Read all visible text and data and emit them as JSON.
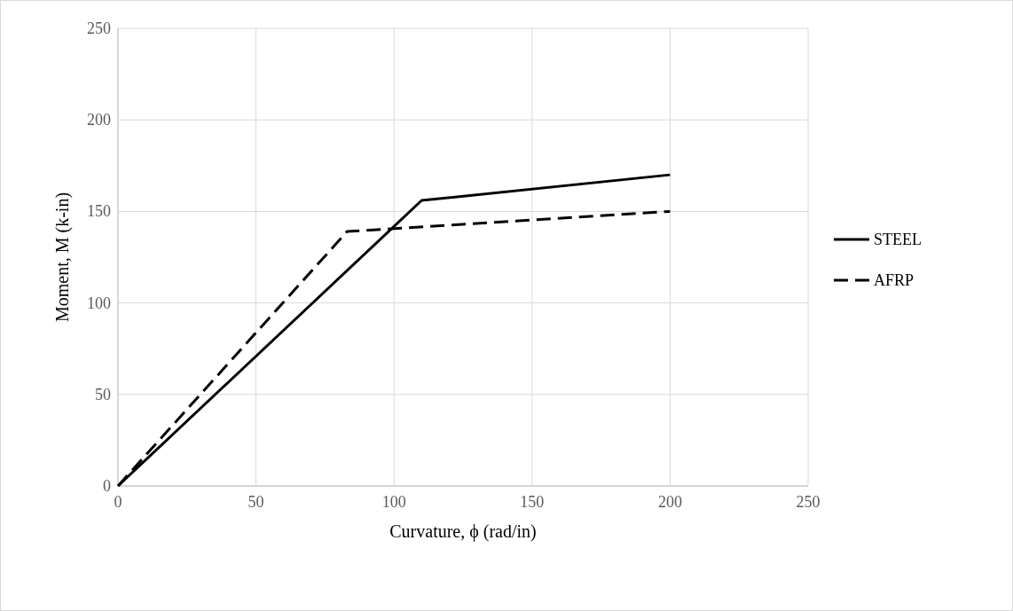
{
  "chart_data": {
    "type": "line",
    "xlabel": "Curvature, ϕ (rad/in)",
    "ylabel": "Moment, M (k-in)",
    "xlim": [
      0,
      250
    ],
    "xticks": [
      0,
      50,
      100,
      150,
      200,
      250
    ],
    "ylim": [
      0,
      250
    ],
    "yticks": [
      0,
      50,
      100,
      150,
      200,
      250
    ],
    "grid": true,
    "legend": "right",
    "marker": "none",
    "series": [
      {
        "name": "STEEL",
        "color": "#000000",
        "line_style": "solid",
        "x": [
          0,
          110,
          200
        ],
        "values": [
          0,
          156,
          170
        ]
      },
      {
        "name": "AFRP",
        "color": "#000000",
        "line_style": "dashed",
        "x": [
          0,
          83,
          200
        ],
        "values": [
          0,
          139,
          150
        ]
      }
    ]
  }
}
